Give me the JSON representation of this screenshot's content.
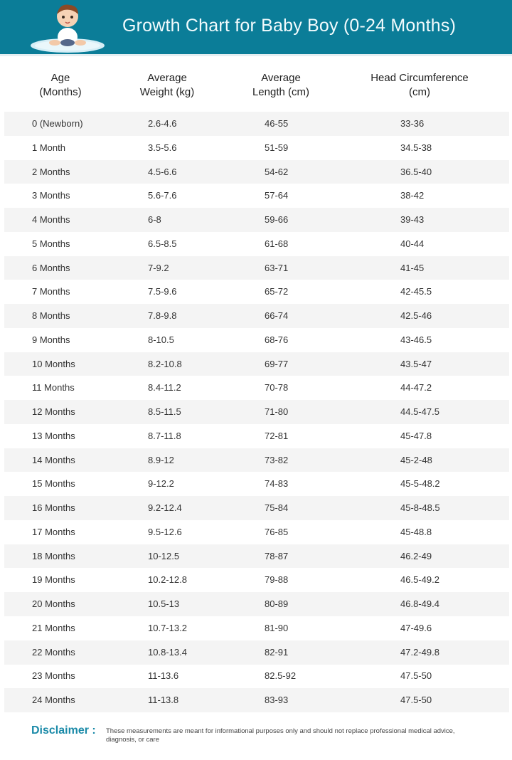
{
  "header": {
    "title": "Growth Chart for Baby Boy (0-24 Months)",
    "banner_color": "#0b7d98"
  },
  "columns": [
    {
      "line1": "Age",
      "line2": "(Months)"
    },
    {
      "line1": "Average",
      "line2": "Weight (kg)"
    },
    {
      "line1": "Average",
      "line2": "Length (cm)"
    },
    {
      "line1": "Head Circumference",
      "line2": "(cm)"
    }
  ],
  "rows": [
    [
      "0 (Newborn)",
      "2.6-4.6",
      "46-55",
      "33-36"
    ],
    [
      "1 Month",
      "3.5-5.6",
      "51-59",
      "34.5-38"
    ],
    [
      "2 Months",
      "4.5-6.6",
      "54-62",
      "36.5-40"
    ],
    [
      "3 Months",
      "5.6-7.6",
      "57-64",
      "38-42"
    ],
    [
      "4 Months",
      "6-8",
      "59-66",
      "39-43"
    ],
    [
      "5 Months",
      "6.5-8.5",
      "61-68",
      "40-44"
    ],
    [
      "6 Months",
      "7-9.2",
      "63-71",
      "41-45"
    ],
    [
      "7 Months",
      "7.5-9.6",
      "65-72",
      "42-45.5"
    ],
    [
      "8 Months",
      "7.8-9.8",
      "66-74",
      "42.5-46"
    ],
    [
      "9 Months",
      "8-10.5",
      "68-76",
      "43-46.5"
    ],
    [
      "10 Months",
      "8.2-10.8",
      "69-77",
      "43.5-47"
    ],
    [
      "11 Months",
      "8.4-11.2",
      "70-78",
      "44-47.2"
    ],
    [
      "12 Months",
      "8.5-11.5",
      "71-80",
      "44.5-47.5"
    ],
    [
      "13 Months",
      "8.7-11.8",
      "72-81",
      "45-47.8"
    ],
    [
      "14 Months",
      "8.9-12",
      "73-82",
      "45-2-48"
    ],
    [
      "15 Months",
      "9-12.2",
      "74-83",
      "45-5-48.2"
    ],
    [
      "16 Months",
      "9.2-12.4",
      "75-84",
      "45-8-48.5"
    ],
    [
      "17 Months",
      "9.5-12.6",
      "76-85",
      "45-48.8"
    ],
    [
      "18 Months",
      "10-12.5",
      "78-87",
      "46.2-49"
    ],
    [
      "19 Months",
      "10.2-12.8",
      "79-88",
      "46.5-49.2"
    ],
    [
      "20 Months",
      "10.5-13",
      "80-89",
      "46.8-49.4"
    ],
    [
      "21 Months",
      "10.7-13.2",
      "81-90",
      "47-49.6"
    ],
    [
      "22 Months",
      "10.8-13.4",
      "82-91",
      "47.2-49.8"
    ],
    [
      "23 Months",
      "11-13.6",
      "82.5-92",
      "47.5-50"
    ],
    [
      "24 Months",
      "11-13.8",
      "83-93",
      "47.5-50"
    ]
  ],
  "disclaimer": {
    "label": "Disclaimer :",
    "text": "These measurements are meant for informational purposes only and should not replace professional medical advice, diagnosis, or care"
  }
}
